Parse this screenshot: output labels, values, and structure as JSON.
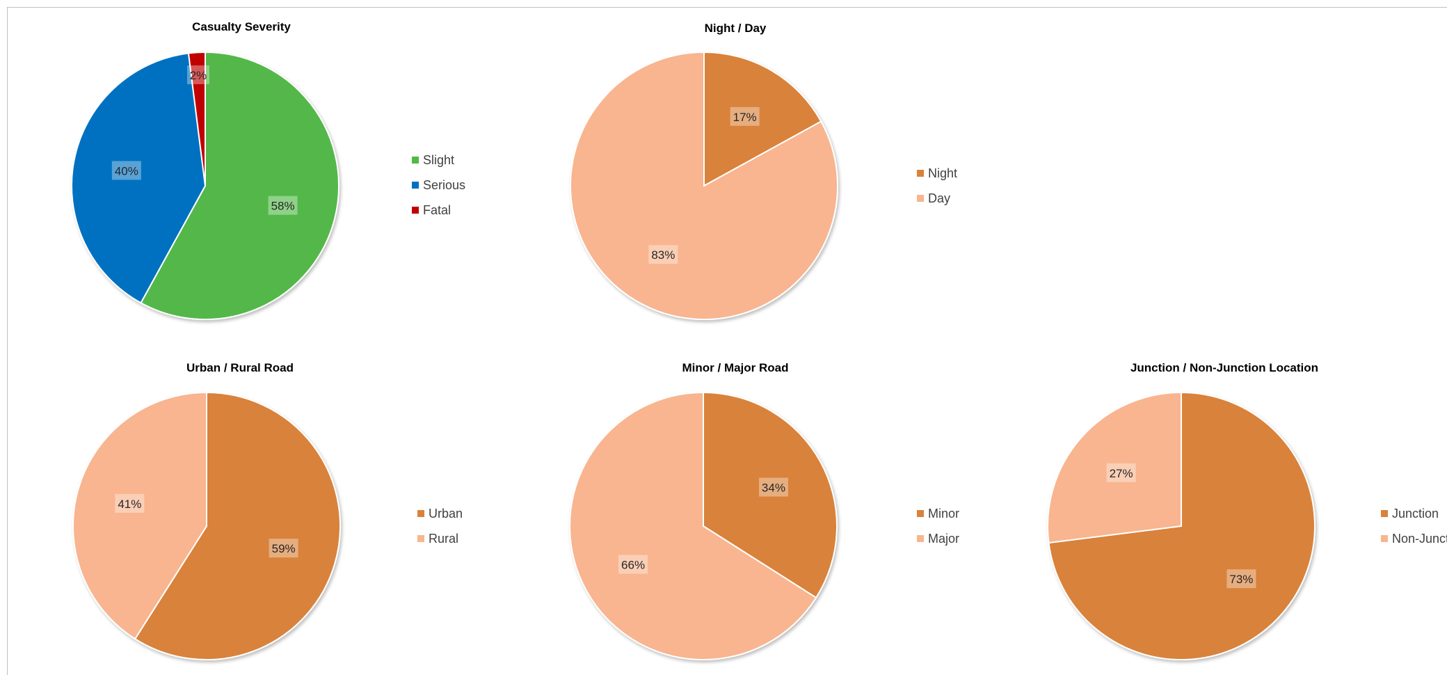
{
  "colors": {
    "slight": "#52b848",
    "serious": "#0071c1",
    "fatal": "#c00000",
    "orange_dark": "#d9823b",
    "orange_light": "#f8b590",
    "label_box": "rgba(255,255,255,0.35)"
  },
  "chart_data": [
    {
      "type": "pie",
      "title": "Casualty Severity",
      "legend_position": "right",
      "series": [
        {
          "name": "Slight",
          "value": 58,
          "label": "58%",
          "color": "#52b848"
        },
        {
          "name": "Serious",
          "value": 40,
          "label": "40%",
          "color": "#0071c1"
        },
        {
          "name": "Fatal",
          "value": 2,
          "label": "2%",
          "color": "#c00000"
        }
      ]
    },
    {
      "type": "pie",
      "title": "Night / Day",
      "legend_position": "right",
      "series": [
        {
          "name": "Night",
          "value": 17,
          "label": "17%",
          "color": "#d9823b"
        },
        {
          "name": "Day",
          "value": 83,
          "label": "83%",
          "color": "#f8b590"
        }
      ]
    },
    {
      "type": "pie",
      "title": "Urban / Rural Road",
      "legend_position": "right",
      "series": [
        {
          "name": "Urban",
          "value": 59,
          "label": "59%",
          "color": "#d9823b"
        },
        {
          "name": "Rural",
          "value": 41,
          "label": "41%",
          "color": "#f8b590"
        }
      ]
    },
    {
      "type": "pie",
      "title": "Minor / Major Road",
      "legend_position": "right",
      "series": [
        {
          "name": "Minor",
          "value": 34,
          "label": "34%",
          "color": "#d9823b"
        },
        {
          "name": "Major",
          "value": 66,
          "label": "66%",
          "color": "#f8b590"
        }
      ]
    },
    {
      "type": "pie",
      "title": "Junction / Non-Junction Location",
      "legend_position": "right",
      "series": [
        {
          "name": "Junction",
          "value": 73,
          "label": "73%",
          "color": "#d9823b"
        },
        {
          "name": "Non-Junct",
          "value": 27,
          "label": "27%",
          "color": "#f8b590"
        }
      ]
    }
  ]
}
